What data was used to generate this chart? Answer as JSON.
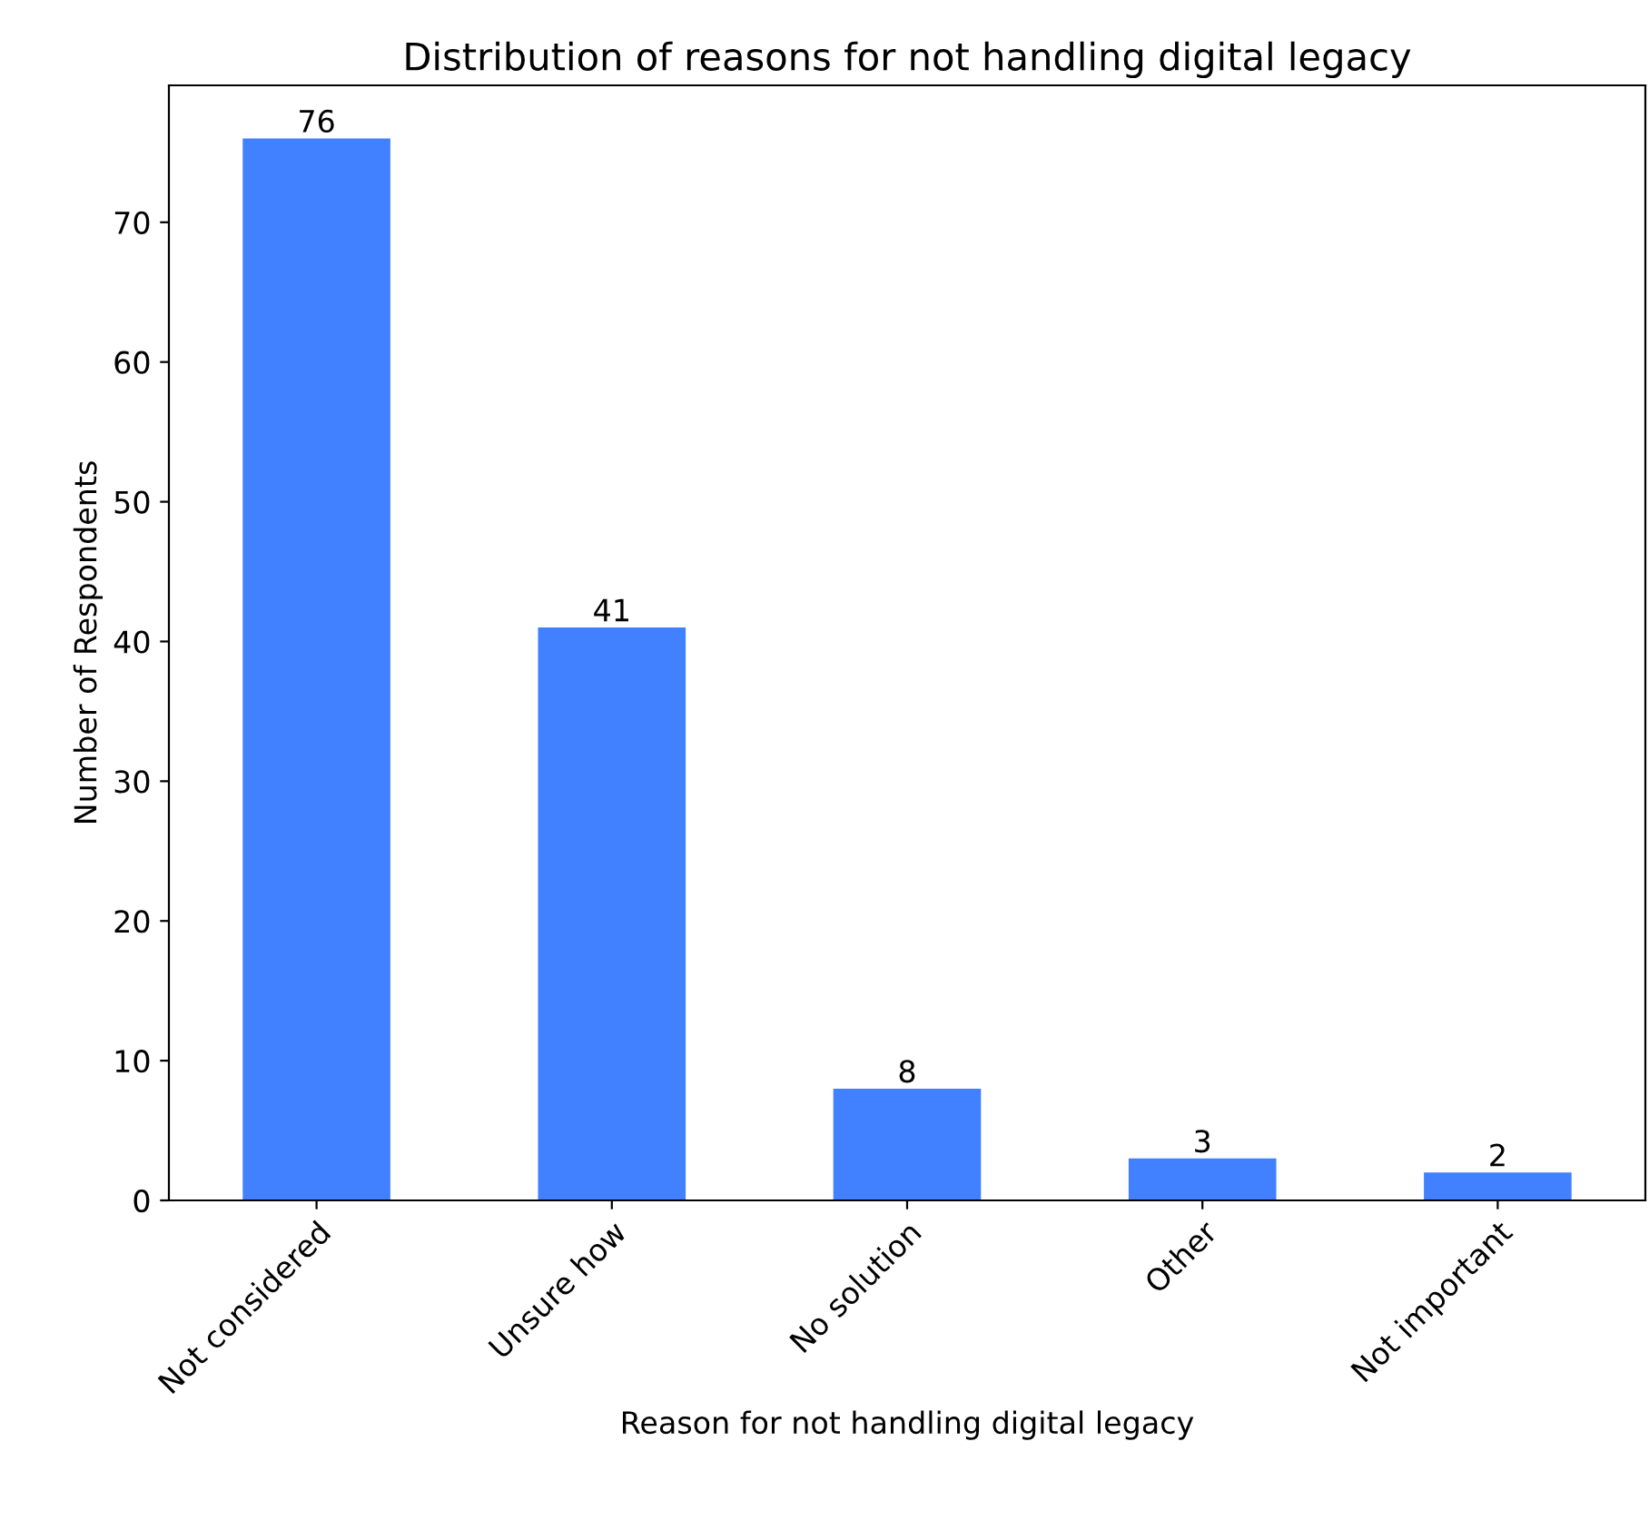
{
  "chart_data": {
    "type": "bar",
    "title": "Distribution of reasons for not handling digital legacy",
    "xlabel": "Reason for not handling digital legacy",
    "ylabel": "Number of Respondents",
    "categories": [
      "Not considered",
      "Unsure how",
      "No solution",
      "Other",
      "Not important"
    ],
    "values": [
      76,
      41,
      8,
      3,
      2
    ],
    "color": "#4180ff",
    "ylim": [
      0,
      79.8
    ],
    "yticks": [
      0,
      10,
      20,
      30,
      40,
      50,
      60,
      70
    ],
    "grid": false,
    "data_labels": true
  }
}
